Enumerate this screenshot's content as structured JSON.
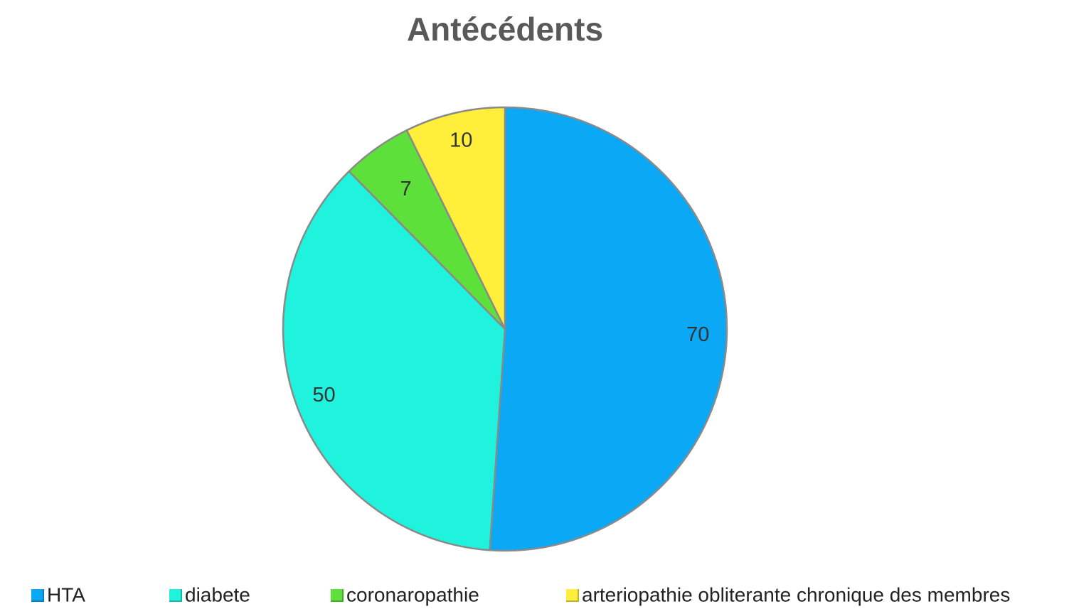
{
  "title": "Antécédents",
  "chart_data": {
    "type": "pie",
    "title": "Antécédents",
    "categories": [
      "HTA",
      "diabete",
      "coronaropathie",
      "arteriopathie obliterante chronique des membres"
    ],
    "values": [
      70,
      50,
      7,
      10
    ],
    "data_labels": [
      "70",
      "50",
      "7",
      "10"
    ],
    "colors": [
      "#0aa8f5",
      "#1ff3dd",
      "#5ee03a",
      "#ffee3a"
    ],
    "legend_position": "bottom",
    "start_angle": "12 o'clock, clockwise"
  },
  "legend": [
    {
      "label": "HTA",
      "color": "#0aa8f5"
    },
    {
      "label": "diabete",
      "color": "#1ff3dd"
    },
    {
      "label": "coronaropathie",
      "color": "#5ee03a"
    },
    {
      "label": "arteriopathie obliterante chronique des membres",
      "color": "#ffee3a"
    }
  ]
}
